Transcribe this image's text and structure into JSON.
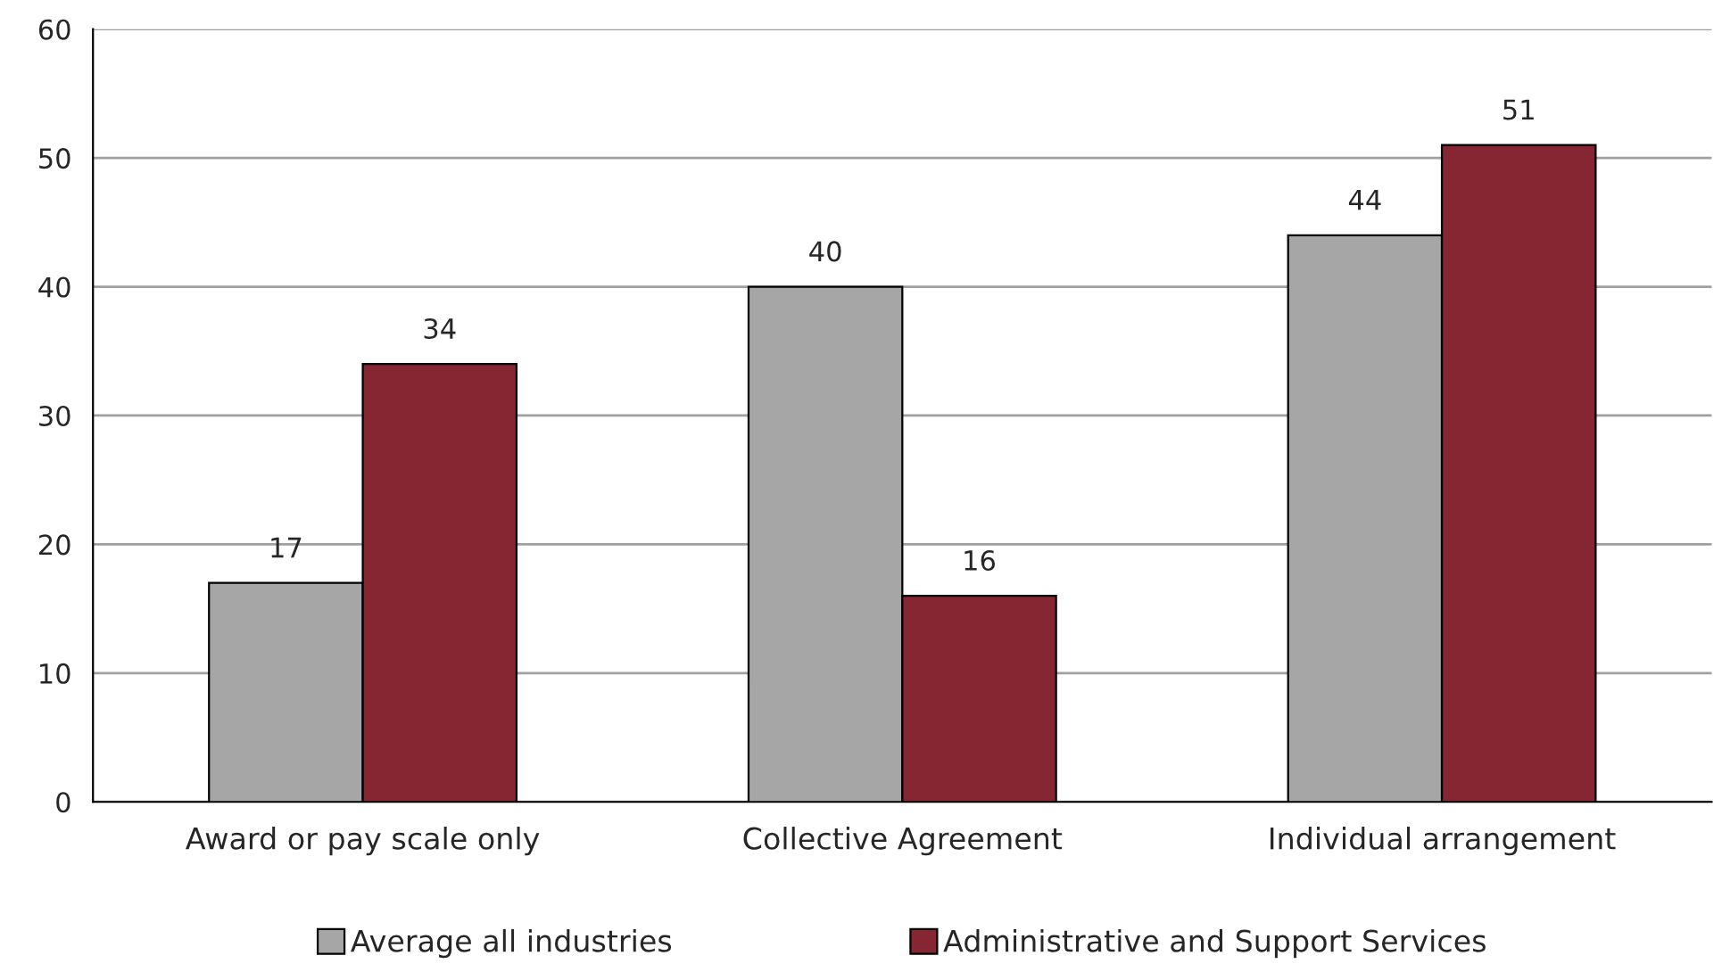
{
  "chart_data": {
    "type": "bar",
    "categories": [
      "Award or pay scale only",
      "Collective Agreement",
      "Individual arrangement"
    ],
    "series": [
      {
        "name": "Average all industries",
        "color": "#a6a6a6",
        "values": [
          17,
          40,
          44
        ]
      },
      {
        "name": "Administrative and Support Services",
        "color": "#862633",
        "values": [
          34,
          16,
          51
        ]
      }
    ],
    "ylim": [
      0,
      60
    ],
    "yticks": [
      0,
      10,
      20,
      30,
      40,
      50,
      60
    ],
    "grid": "y",
    "legend": "bottom",
    "data_labels": true
  }
}
